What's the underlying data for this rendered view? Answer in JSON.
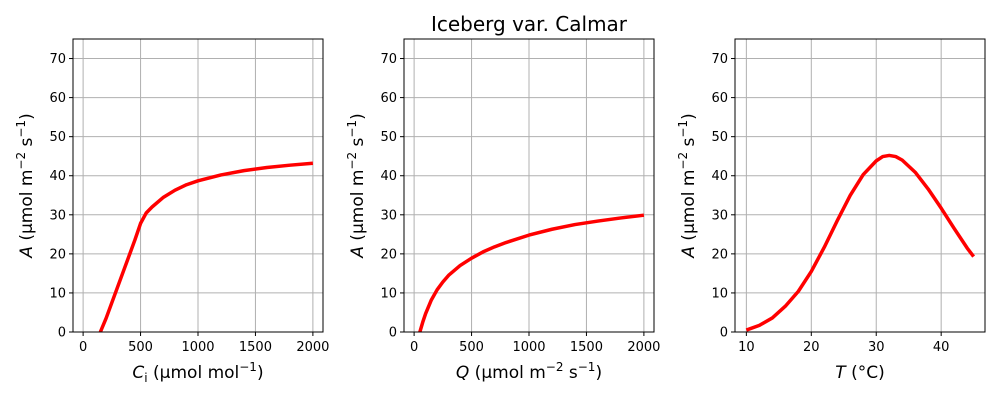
{
  "suptitle": "Iceberg var. Calmar",
  "colors": {
    "curve": "#ff0000",
    "grid": "#b0b0b0"
  },
  "chart_data": [
    {
      "type": "line",
      "xlabel_main": "C",
      "xlabel_sub": "i",
      "xlabel_rest": " (μmol mol",
      "xlabel_sup": "−1",
      "xlabel_end": ")",
      "ylabel_italic": "A",
      "ylabel_rest": " (μmol m",
      "ylabel_sup1": "−2",
      "ylabel_mid": " s",
      "ylabel_sup2": "−1",
      "ylabel_end": ")",
      "xlim": [
        -88,
        2088
      ],
      "ylim": [
        0,
        75
      ],
      "xticks": [
        0,
        500,
        1000,
        1500,
        2000
      ],
      "xtick_labels": [
        "0",
        "500",
        "1000",
        "1500",
        "2000"
      ],
      "yticks": [
        0,
        10,
        20,
        30,
        40,
        50,
        60,
        70
      ],
      "ytick_labels": [
        "0",
        "10",
        "20",
        "30",
        "40",
        "50",
        "60",
        "70"
      ],
      "grid": true,
      "series": [
        {
          "x": [
            150,
            200,
            250,
            300,
            350,
            400,
            450,
            500,
            550,
            600,
            700,
            800,
            900,
            1000,
            1200,
            1400,
            1600,
            1800,
            2000
          ],
          "y": [
            0,
            3.5,
            7.5,
            11.5,
            15.5,
            19.5,
            23.5,
            27.8,
            30.5,
            32.0,
            34.5,
            36.3,
            37.7,
            38.7,
            40.2,
            41.3,
            42.1,
            42.7,
            43.2
          ]
        }
      ]
    },
    {
      "type": "line",
      "xlabel_italic": "Q",
      "xlabel_rest": " (μmol m",
      "xlabel_sup1": "−2",
      "xlabel_mid": " s",
      "xlabel_sup2": "−1",
      "xlabel_end": ")",
      "ylabel_italic": "A",
      "ylabel_rest": " (μmol m",
      "ylabel_sup1": "−2",
      "ylabel_mid": " s",
      "ylabel_sup2": "−1",
      "ylabel_end": ")",
      "xlim": [
        -88,
        2088
      ],
      "ylim": [
        0,
        75
      ],
      "xticks": [
        0,
        500,
        1000,
        1500,
        2000
      ],
      "xtick_labels": [
        "0",
        "500",
        "1000",
        "1500",
        "2000"
      ],
      "yticks": [
        0,
        10,
        20,
        30,
        40,
        50,
        60,
        70
      ],
      "ytick_labels": [
        "0",
        "10",
        "20",
        "30",
        "40",
        "50",
        "60",
        "70"
      ],
      "grid": true,
      "series": [
        {
          "x": [
            50,
            75,
            100,
            150,
            200,
            250,
            300,
            400,
            500,
            600,
            700,
            800,
            1000,
            1200,
            1400,
            1600,
            1800,
            2000
          ],
          "y": [
            0,
            2.5,
            4.7,
            8.2,
            10.8,
            12.8,
            14.5,
            17.0,
            18.9,
            20.5,
            21.8,
            22.9,
            24.8,
            26.3,
            27.5,
            28.4,
            29.2,
            29.9
          ]
        }
      ]
    },
    {
      "type": "line",
      "xlabel_italic": "T",
      "xlabel_rest": " (°C)",
      "ylabel_italic": "A",
      "ylabel_rest": " (μmol m",
      "ylabel_sup1": "−2",
      "ylabel_mid": " s",
      "ylabel_sup2": "−1",
      "ylabel_end": ")",
      "xlim": [
        8.25,
        46.75
      ],
      "ylim": [
        0,
        75
      ],
      "xticks": [
        10,
        20,
        30,
        40
      ],
      "xtick_labels": [
        "10",
        "20",
        "30",
        "40"
      ],
      "yticks": [
        0,
        10,
        20,
        30,
        40,
        50,
        60,
        70
      ],
      "ytick_labels": [
        "0",
        "10",
        "20",
        "30",
        "40",
        "50",
        "60",
        "70"
      ],
      "grid": true,
      "series": [
        {
          "x": [
            10,
            12,
            14,
            16,
            18,
            20,
            22,
            24,
            26,
            28,
            30,
            31,
            32,
            33,
            34,
            36,
            38,
            40,
            42,
            44,
            45
          ],
          "y": [
            0.5,
            1.7,
            3.6,
            6.6,
            10.4,
            15.5,
            21.7,
            28.5,
            35.0,
            40.3,
            43.8,
            44.9,
            45.2,
            44.9,
            44.0,
            40.9,
            36.6,
            31.7,
            26.5,
            21.5,
            19.3
          ]
        }
      ]
    }
  ]
}
